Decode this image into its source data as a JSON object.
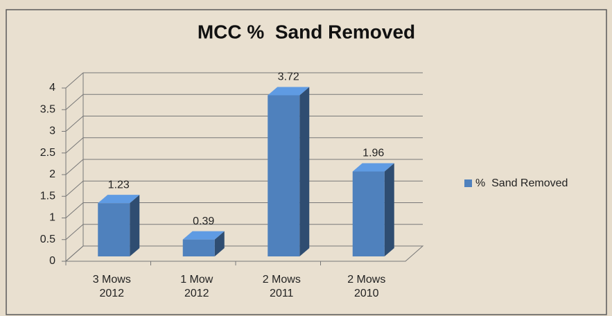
{
  "chart_data": {
    "type": "bar",
    "title": "MCC %  Sand Removed",
    "categories": [
      "3 Mows 2012",
      "1 Mow 2012",
      "2 Mows 2011",
      "2 Mows 2010"
    ],
    "series": [
      {
        "name": "%  Sand Removed",
        "color": "#4f81bd",
        "values": [
          1.23,
          0.39,
          3.72,
          1.96
        ]
      }
    ],
    "ylim": [
      0,
      4
    ],
    "yticks": [
      0,
      0.5,
      1,
      1.5,
      2,
      2.5,
      3,
      3.5,
      4
    ],
    "grid": true,
    "legend": "right"
  }
}
